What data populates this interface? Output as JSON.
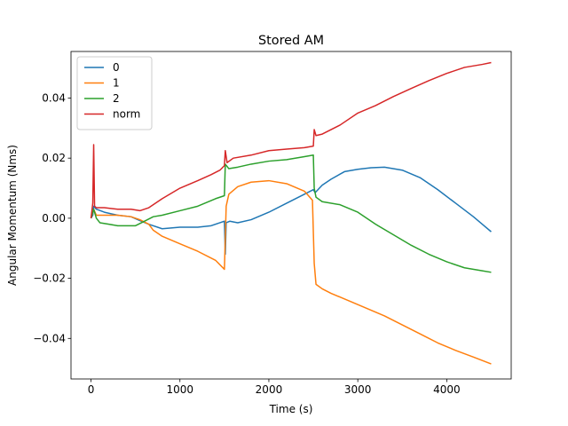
{
  "chart_data": {
    "type": "line",
    "title": "Stored AM",
    "xlabel": "Time (s)",
    "ylabel": "Angular Momentum (Nms)",
    "xlim": [
      -225,
      4725
    ],
    "ylim": [
      -0.0535,
      0.0555
    ],
    "xticks": [
      0,
      1000,
      2000,
      3000,
      4000
    ],
    "xtick_labels": [
      "0",
      "1000",
      "2000",
      "3000",
      "4000"
    ],
    "yticks": [
      -0.04,
      -0.02,
      0.0,
      0.02,
      0.04
    ],
    "ytick_labels": [
      "−0.04",
      "−0.02",
      "0.00",
      "0.02",
      "0.04"
    ],
    "grid": false,
    "legend_position": "top-left",
    "series": [
      {
        "name": "0",
        "color": "#1f77b4",
        "x": [
          0,
          20,
          30,
          60,
          150,
          300,
          450,
          550,
          650,
          800,
          1000,
          1200,
          1350,
          1450,
          1500,
          1510,
          1520,
          1560,
          1650,
          1800,
          2000,
          2200,
          2400,
          2500,
          2520,
          2600,
          2700,
          2850,
          3000,
          3150,
          3300,
          3500,
          3700,
          3900,
          4100,
          4300,
          4500
        ],
        "y": [
          0.0,
          0.001,
          0.004,
          0.003,
          0.002,
          0.001,
          0.0005,
          -0.0008,
          -0.002,
          -0.0035,
          -0.003,
          -0.003,
          -0.0025,
          -0.0015,
          -0.001,
          -0.012,
          -0.0015,
          -0.001,
          -0.0015,
          -0.0005,
          0.002,
          0.005,
          0.008,
          0.0095,
          0.0085,
          0.011,
          0.013,
          0.0155,
          0.0163,
          0.0168,
          0.017,
          0.016,
          0.0135,
          0.0095,
          0.005,
          0.0005,
          -0.0045
        ]
      },
      {
        "name": "1",
        "color": "#ff7f0e",
        "x": [
          0,
          20,
          30,
          60,
          150,
          300,
          450,
          550,
          650,
          700,
          800,
          1000,
          1200,
          1400,
          1500,
          1520,
          1550,
          1650,
          1800,
          2000,
          2200,
          2400,
          2490,
          2510,
          2530,
          2600,
          2700,
          2900,
          3100,
          3300,
          3500,
          3700,
          3900,
          4100,
          4300,
          4500
        ],
        "y": [
          0.0,
          0.002,
          0.003,
          0.001,
          0.001,
          0.001,
          0.0005,
          -0.0005,
          -0.002,
          -0.004,
          -0.006,
          -0.0085,
          -0.011,
          -0.014,
          -0.017,
          0.004,
          0.008,
          0.0105,
          0.012,
          0.0125,
          0.0115,
          0.009,
          0.006,
          -0.015,
          -0.022,
          -0.0235,
          -0.025,
          -0.0275,
          -0.03,
          -0.0325,
          -0.0355,
          -0.0385,
          -0.0415,
          -0.044,
          -0.0462,
          -0.0485
        ]
      },
      {
        "name": "2",
        "color": "#2ca02c",
        "x": [
          0,
          20,
          30,
          60,
          100,
          200,
          300,
          400,
          500,
          600,
          700,
          800,
          1000,
          1200,
          1400,
          1500,
          1510,
          1550,
          1650,
          1800,
          2000,
          2200,
          2400,
          2500,
          2510,
          2530,
          2600,
          2800,
          3000,
          3200,
          3400,
          3600,
          3800,
          4000,
          4200,
          4400,
          4500
        ],
        "y": [
          0.0,
          0.002,
          0.003,
          0.0,
          -0.0015,
          -0.002,
          -0.0025,
          -0.0025,
          -0.0025,
          -0.001,
          0.0005,
          0.001,
          0.0025,
          0.004,
          0.0065,
          0.0075,
          0.018,
          0.0165,
          0.017,
          0.018,
          0.019,
          0.0195,
          0.0205,
          0.021,
          0.01,
          0.007,
          0.0055,
          0.0045,
          0.002,
          -0.002,
          -0.0055,
          -0.009,
          -0.012,
          -0.0145,
          -0.0165,
          -0.0175,
          -0.018
        ]
      },
      {
        "name": "norm",
        "color": "#d62728",
        "x": [
          0,
          20,
          30,
          40,
          60,
          150,
          300,
          450,
          550,
          650,
          800,
          1000,
          1200,
          1350,
          1450,
          1500,
          1510,
          1530,
          1600,
          1800,
          2000,
          2200,
          2400,
          2500,
          2510,
          2530,
          2600,
          2800,
          3000,
          3200,
          3400,
          3600,
          3800,
          4000,
          4200,
          4400,
          4500
        ],
        "y": [
          0.0,
          0.005,
          0.0245,
          0.004,
          0.0035,
          0.0035,
          0.003,
          0.003,
          0.0025,
          0.0035,
          0.0065,
          0.01,
          0.0125,
          0.0145,
          0.016,
          0.0175,
          0.0225,
          0.0185,
          0.02,
          0.021,
          0.0225,
          0.023,
          0.0235,
          0.024,
          0.0295,
          0.0275,
          0.028,
          0.031,
          0.035,
          0.0375,
          0.0405,
          0.0432,
          0.0458,
          0.0482,
          0.0502,
          0.0512,
          0.0518
        ]
      }
    ]
  }
}
